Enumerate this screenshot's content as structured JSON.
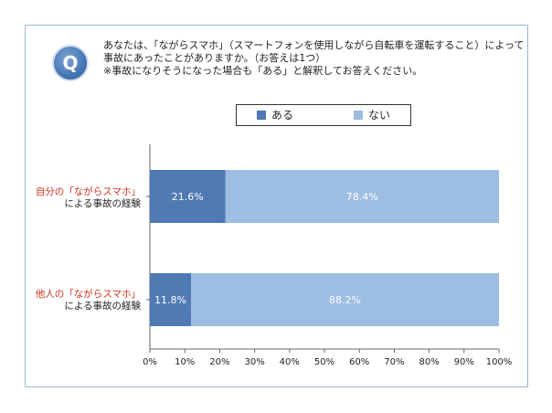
{
  "question": {
    "badge": "Q",
    "lines": [
      "あなたは、「ながらスマホ」（スマートフォンを使用しながら自転車を運転すること）によって",
      "事故にあったことがありますか。（お答えは1つ）",
      "※事故になりそうになった場合も「ある」と解釈してお答えください。"
    ]
  },
  "colors": {
    "aru": "#4f7ab3",
    "nai": "#9dbde2",
    "category_highlight": "#d03020"
  },
  "chart_data": {
    "type": "bar",
    "orientation": "horizontal",
    "stacked": true,
    "percent": true,
    "legend_position": "top",
    "categories": [
      {
        "highlight": "自分の「ながらスマホ」",
        "rest": "による事故の経験"
      },
      {
        "highlight": "他人の「ながらスマホ」",
        "rest": "による事故の経験"
      }
    ],
    "series": [
      {
        "name": "ある",
        "values": [
          21.6,
          11.8
        ],
        "labels": [
          "21.6%",
          "11.8%"
        ]
      },
      {
        "name": "ない",
        "values": [
          78.4,
          88.2
        ],
        "labels": [
          "78.4%",
          "88.2%"
        ]
      }
    ],
    "xlim": [
      0,
      100
    ],
    "xticks": [
      0,
      10,
      20,
      30,
      40,
      50,
      60,
      70,
      80,
      90,
      100
    ],
    "xtick_labels": [
      "0%",
      "10%",
      "20%",
      "30%",
      "40%",
      "50%",
      "60%",
      "70%",
      "80%",
      "90%",
      "100%"
    ],
    "grid": false
  }
}
